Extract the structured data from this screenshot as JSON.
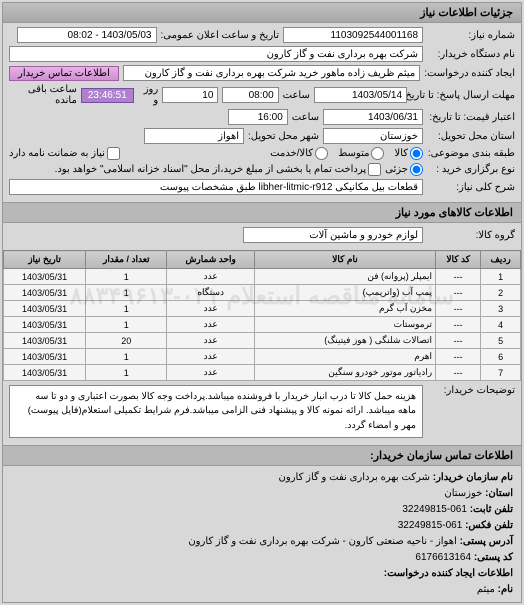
{
  "panel": {
    "title": "جزئیات اطلاعات نیاز"
  },
  "header": {
    "request_no_label": "شماره نیاز:",
    "request_no": "1103092544001168",
    "ann_datetime_label": "تاریخ و ساعت اعلان عمومی:",
    "ann_datetime": "1403/05/03 - 08:02",
    "buyer_org_label": "نام دستگاه خریدار:",
    "buyer_org": "شرکت بهره برداری نفت و گاز کارون",
    "requester_label": "ایجاد کننده درخواست:",
    "requester": "میثم ظریف زاده ماهور خرید  شرکت بهره برداری نفت و گاز کارون",
    "contact_btn": "اطلاعات تماس خریدار",
    "deadline_send_label": "مهلت ارسال پاسخ: تا تاریخ:",
    "deadline_send_date": "1403/05/14",
    "time_label": "ساعت",
    "deadline_send_time": "08:00",
    "days_remaining": "10",
    "day_word": "روز و",
    "time_remaining": "23:46:51",
    "remain_word": "ساعت باقی مانده",
    "validity_label": "اعتبار قیمت: تا تاریخ:",
    "validity_date": "1403/06/31",
    "validity_time": "16:00",
    "province_label": "استان محل تحویل:",
    "province": "خوزستان",
    "city_label": "شهر محل تحویل:",
    "city": "اهواز",
    "budget_type_label": "طبقه بندی موضوعی:",
    "budget_kala": "کالا",
    "budget_medium": "متوسط",
    "budget_service": "کالا/خدمت",
    "has_guarantee_label": "نیاز به ضمانت نامه دارد",
    "payment_type_label": "نوع برگزاری خرید :",
    "payment_type_jari": "جزئی",
    "payment_note": "پرداخت تمام یا بخشی از مبلغ خرید،از محل \"اسناد خزانه اسلامی\" خواهد بود.",
    "subject_label": "شرح کلی نیاز:",
    "subject": "قطعات بیل مکانیکی libher-litmic-r912 طبق مشخصات پیوست"
  },
  "goods_section": {
    "title": "اطلاعات کالاهای مورد نیاز",
    "group_label": "گروه کالا:",
    "group": "لوازم خودرو و ماشین آلات"
  },
  "table": {
    "cols": [
      "ردیف",
      "کد کالا",
      "نام کالا",
      "واحد شمارش",
      "تعداد / مقدار",
      "تاریخ نیاز"
    ],
    "rows": [
      [
        "1",
        "---",
        "ایمپلر (پروانه) فن",
        "عدد",
        "1",
        "1403/05/31"
      ],
      [
        "2",
        "---",
        "پمپ آب (واترپمپ)",
        "دستگاه",
        "1",
        "1403/05/31"
      ],
      [
        "3",
        "---",
        "مخزن آب گرم",
        "عدد",
        "1",
        "1403/05/31"
      ],
      [
        "4",
        "---",
        "ترموستات",
        "عدد",
        "1",
        "1403/05/31"
      ],
      [
        "5",
        "---",
        "اتصالات شلنگی ( هوز فیتینگ)",
        "عدد",
        "20",
        "1403/05/31"
      ],
      [
        "6",
        "---",
        "اهرم",
        "عدد",
        "1",
        "1403/05/31"
      ],
      [
        "7",
        "---",
        "رادیاتور موتور خودرو سنگین",
        "عدد",
        "1",
        "1403/05/31"
      ]
    ]
  },
  "notes": {
    "buyer_desc_label": "توضیحات خریدار:",
    "buyer_desc": "هزینه حمل کالا تا درب انبار خریدار با فروشنده میباشد.پرداخت وجه کالا بصورت اعتباری و دو تا سه ماهه میباشد. ارائه نمونه کالا و پیشنهاد فنی الزامی میباشد.فرم شرایط تکمیلی استعلام(فایل پیوست) مهر و امضاء گردد."
  },
  "contact": {
    "section_title": "اطلاعات تماس سازمان خریدار:",
    "org_label": "نام سازمان خریدار:",
    "org": "شرکت بهره برداری نفت و گاز کارون",
    "province_label": "استان:",
    "province": "خوزستان",
    "phone_label": "تلفن ثابت:",
    "phone": "061-32249815",
    "fax_label": "تلفن فکس:",
    "fax": "061-32249815",
    "address_label": "آدرس پستی:",
    "address": "اهواز - ناحیه صنعتی کارون - شرکت بهره برداری نفت و گاز کارون",
    "postal_label": "کد پستی:",
    "postal": "6176613164",
    "creator_label": "اطلاعات ایجاد کننده درخواست:",
    "creator_name_label": "نام:",
    "creator_name": "میثم"
  },
  "watermark": "سامانه مناقصه استعلام\n۰۲۱-۸۸۳۴۹۶۱۳",
  "colors": {
    "bg": "#d8d8d8",
    "purple": "#b080d0",
    "pink_btn": "#d090d0"
  }
}
